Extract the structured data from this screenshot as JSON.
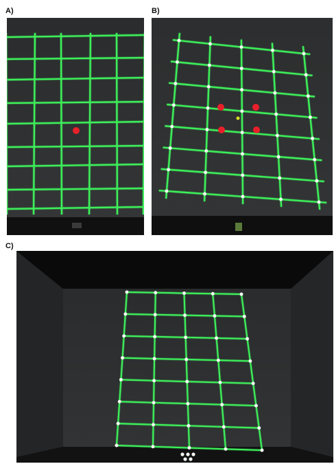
{
  "panels": [
    {
      "label": "A)"
    },
    {
      "label": "B)"
    },
    {
      "label": "C)"
    }
  ],
  "colors": {
    "grid_line": "#3df05a",
    "marker_red": "#e8202a",
    "marker_white": "#f2f6f2",
    "center_marker": "#d8e020",
    "screen_dark": "#2f3132",
    "floor_dark": "#141414",
    "room_top": "#0c0c0c",
    "room_wall": "#2b2d2e"
  },
  "icons": [
    "grid-projection-photo"
  ]
}
